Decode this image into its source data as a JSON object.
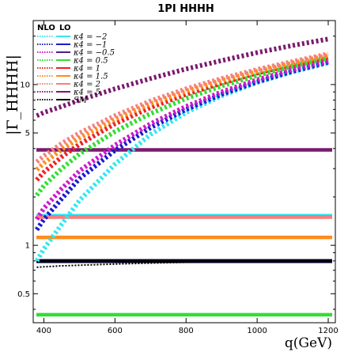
{
  "chart_data": {
    "type": "line",
    "title": "1PI HHHH",
    "xlabel": "q(GeV)",
    "ylabel": "|Γ_HHHH|",
    "xlim": [
      370,
      1220
    ],
    "ylim": [
      0.33,
      25
    ],
    "yscale": "log",
    "x_ticks": [
      400,
      600,
      800,
      1000,
      1200
    ],
    "y_ticks": [
      0.5,
      1,
      5,
      10
    ],
    "grid": false,
    "legend": {
      "placement": "top-left",
      "column_headers": [
        "NLO",
        "LO"
      ],
      "entries": [
        "κ4 = −2",
        "κ4 = −1",
        "κ4 = −0.5",
        "κ4 = 0.5",
        "κ4 = 1",
        "κ4 = 1.5",
        "κ4 = 2",
        "κ4 = 5",
        "SM"
      ]
    },
    "x": [
      380,
      400,
      450,
      500,
      600,
      700,
      800,
      900,
      1000,
      1100,
      1200
    ],
    "series": [
      {
        "name": "κ4 = −2",
        "color": "#33e6f0",
        "style": "NLO",
        "values": [
          0.8,
          0.95,
          1.35,
          1.9,
          3.2,
          4.9,
          6.7,
          8.5,
          10.3,
          12.0,
          13.6
        ]
      },
      {
        "name": "κ4 = −1",
        "color": "#1a1acc",
        "style": "NLO",
        "values": [
          1.25,
          1.45,
          1.95,
          2.6,
          3.9,
          5.4,
          7.0,
          8.7,
          10.4,
          12.1,
          13.8
        ]
      },
      {
        "name": "κ4 = −0.5",
        "color": "#cc1acc",
        "style": "NLO",
        "values": [
          1.45,
          1.7,
          2.25,
          2.9,
          4.2,
          5.7,
          7.3,
          9.0,
          10.7,
          12.4,
          14.0
        ]
      },
      {
        "name": "κ4 = 0.5",
        "color": "#33dd33",
        "style": "NLO",
        "values": [
          2.05,
          2.35,
          3.0,
          3.7,
          5.1,
          6.6,
          8.2,
          9.8,
          11.4,
          13.0,
          14.6
        ]
      },
      {
        "name": "κ4 = 1",
        "color": "#ee2222",
        "style": "NLO",
        "values": [
          2.55,
          2.85,
          3.55,
          4.25,
          5.7,
          7.2,
          8.7,
          10.2,
          11.8,
          13.3,
          14.9
        ]
      },
      {
        "name": "κ4 = 1.5",
        "color": "#ff8c1a",
        "style": "NLO",
        "values": [
          2.95,
          3.25,
          3.95,
          4.65,
          6.1,
          7.6,
          9.1,
          10.6,
          12.1,
          13.6,
          15.2
        ]
      },
      {
        "name": "κ4 = 2",
        "color": "#f48080",
        "style": "NLO",
        "values": [
          3.3,
          3.6,
          4.3,
          5.0,
          6.4,
          7.9,
          9.4,
          10.9,
          12.4,
          13.9,
          15.5
        ]
      },
      {
        "name": "κ4 = 5",
        "color": "#7a1a6e",
        "style": "NLO",
        "values": [
          6.4,
          6.7,
          7.3,
          8.0,
          9.4,
          10.9,
          12.5,
          14.1,
          15.8,
          17.5,
          19.2
        ]
      },
      {
        "name": "SM",
        "color": "#000000",
        "style": "NLO",
        "values": [
          0.73,
          0.735,
          0.745,
          0.752,
          0.765,
          0.775,
          0.785,
          0.792,
          0.8,
          0.806,
          0.81
        ]
      }
    ],
    "lo_lines": [
      {
        "name": "κ4 = −2",
        "color": "#33e6f0",
        "value": 1.53
      },
      {
        "name": "κ4 = −1",
        "color": "#1a1acc",
        "value": 0.795
      },
      {
        "name": "κ4 = −0.5",
        "color": "#5a1a8a",
        "value": 0.8
      },
      {
        "name": "κ4 = 0.5",
        "color": "#33dd33",
        "value": 0.37
      },
      {
        "name": "κ4 = 1",
        "color": "#ee2222",
        "value": 1.5
      },
      {
        "name": "κ4 = 1.5",
        "color": "#ff8c1a",
        "value": 1.12
      },
      {
        "name": "κ4 = 2",
        "color": "#f48080",
        "value": 1.5
      },
      {
        "name": "κ4 = 5",
        "color": "#7a1a6e",
        "value": 3.92
      },
      {
        "name": "SM",
        "color": "#000000",
        "value": 0.8
      }
    ]
  }
}
